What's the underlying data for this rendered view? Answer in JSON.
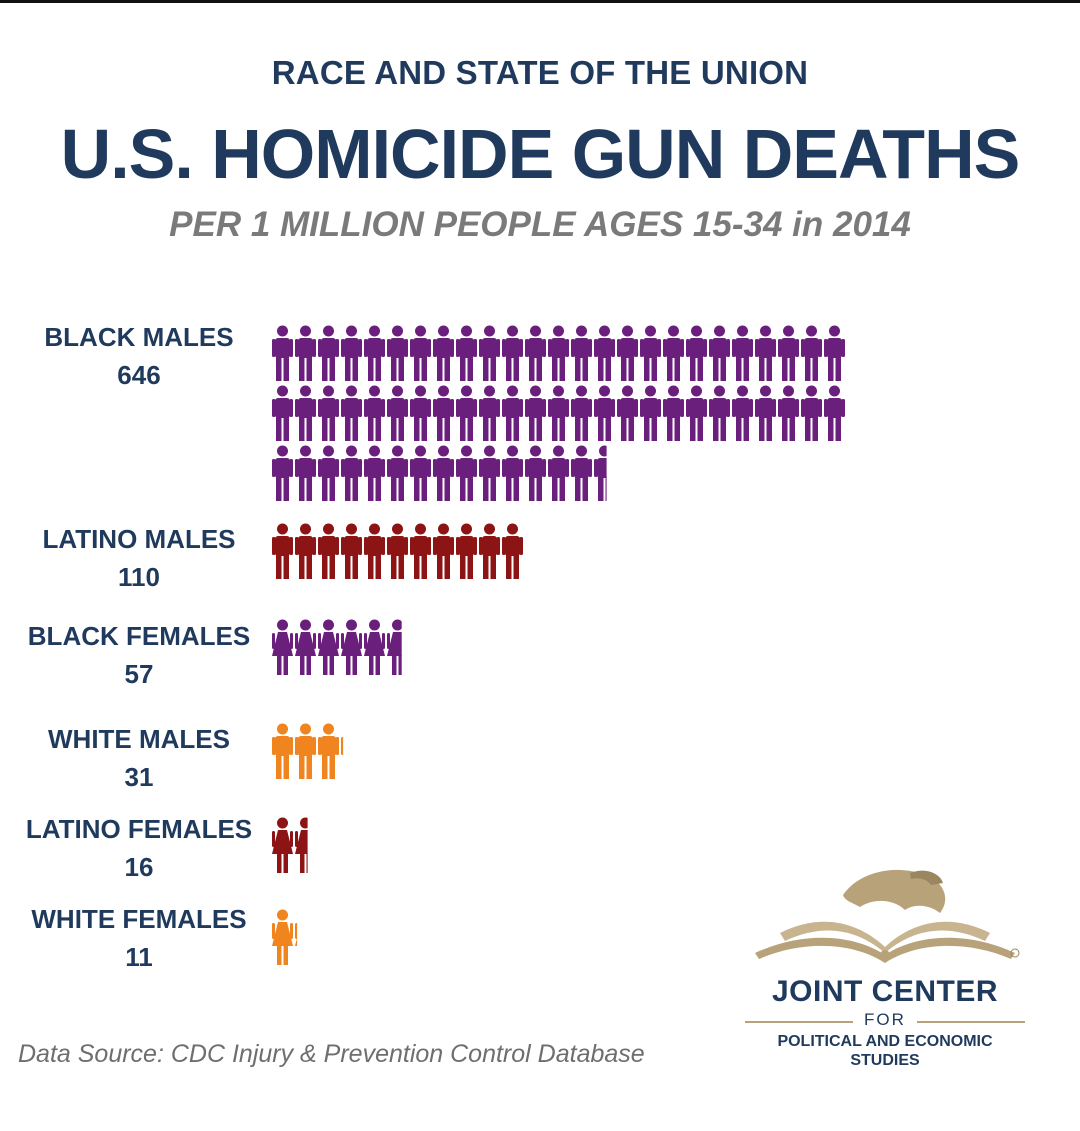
{
  "header": {
    "eyebrow": "RACE AND STATE OF THE UNION",
    "title": "U.S. HOMICIDE GUN DEATHS",
    "subtitle": "PER 1 MILLION PEOPLE AGES 15-34 in 2014"
  },
  "chart_data": {
    "type": "bar",
    "categories": [
      "BLACK MALES",
      "LATINO MALES",
      "BLACK FEMALES",
      "WHITE MALES",
      "LATINO FEMALES",
      "WHITE FEMALES"
    ],
    "values": [
      646,
      110,
      57,
      31,
      16,
      11
    ],
    "value_labels": [
      "646",
      "110",
      "57",
      "31",
      "16",
      "11"
    ],
    "unit_per_icon": 10,
    "genders": [
      "male",
      "male",
      "female",
      "male",
      "female",
      "female"
    ],
    "colors": [
      "#6b1f7d",
      "#8c1414",
      "#6b1f7d",
      "#f0841e",
      "#8c1414",
      "#f0841e"
    ]
  },
  "footer": {
    "source": "Data Source: CDC Injury & Prevention Control Database"
  },
  "logo": {
    "name": "JOINT CENTER",
    "for": "FOR",
    "subtitle_line1": "POLITICAL AND ECONOMIC",
    "subtitle_line2": "STUDIES",
    "color": "#b8a27a"
  }
}
